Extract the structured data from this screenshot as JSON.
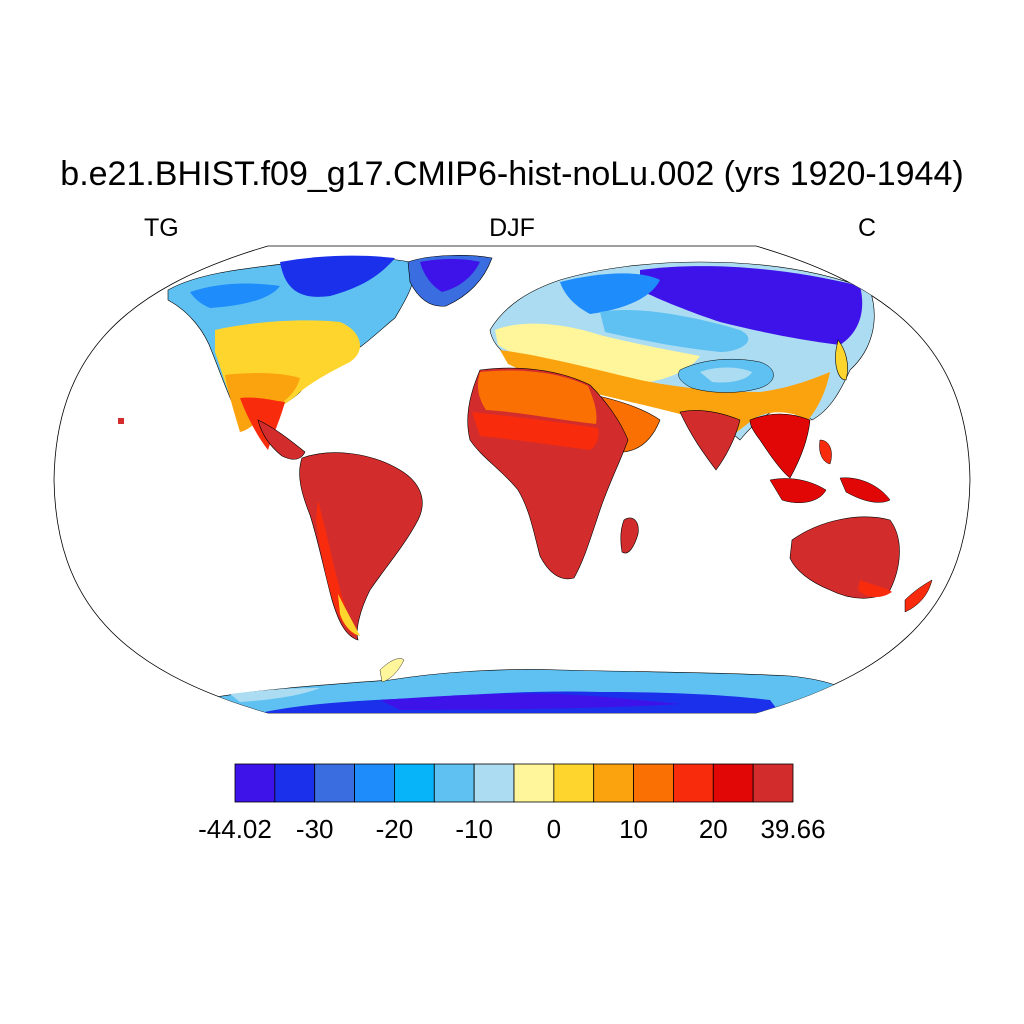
{
  "title": "b.e21.BHIST.f09_g17.CMIP6-hist-noLu.002 (yrs 1920-1944)",
  "left_label": "TG",
  "center_label": "DJF",
  "right_label": "C",
  "colorbar": {
    "colors": [
      "#3e13ea",
      "#1b30ea",
      "#3a6ee0",
      "#1f8cfb",
      "#08b4f9",
      "#5ec1f2",
      "#acdcf1",
      "#fff59a",
      "#fed52c",
      "#fba30e",
      "#fa7003",
      "#f82c0d",
      "#e10706",
      "#d22c2c"
    ],
    "labels": [
      "-44.02",
      "-30",
      "-20",
      "-10",
      "0",
      "10",
      "20",
      "39.66"
    ],
    "label_positions": [
      0,
      2,
      4,
      6,
      8,
      10,
      12,
      14
    ]
  }
}
